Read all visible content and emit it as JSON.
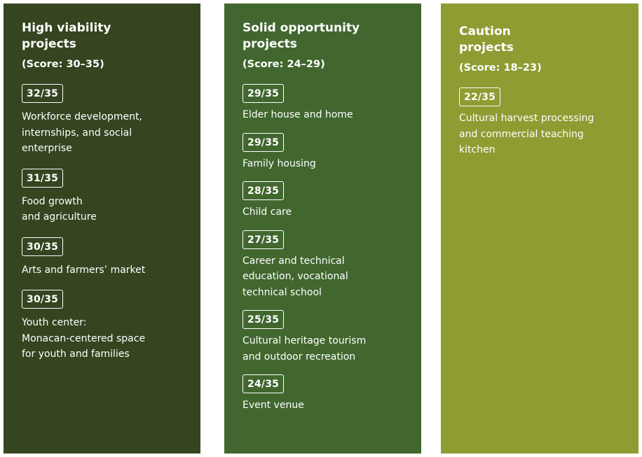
{
  "columns": [
    {
      "title": "High viability\nprojects",
      "score": "(Score: 30–35)",
      "items": [
        {
          "score": "32/35",
          "label": "Workforce development,\ninternships, and social\nenterprise"
        },
        {
          "score": "31/35",
          "label": "Food growth\nand agriculture"
        },
        {
          "score": "30/35",
          "label": "Arts and farmers’ market"
        },
        {
          "score": "30/35",
          "label": "Youth center:\nMonacan-centered space\nfor youth and families"
        }
      ]
    },
    {
      "title": "Solid opportunity\nprojects",
      "score": "(Score: 24–29)",
      "items": [
        {
          "score": "29/35",
          "label": "Elder house and home"
        },
        {
          "score": "29/35",
          "label": "Family housing"
        },
        {
          "score": "28/35",
          "label": "Child care"
        },
        {
          "score": "27/35",
          "label": "Career and technical\neducation, vocational\ntechnical school"
        },
        {
          "score": "25/35",
          "label": "Cultural heritage tourism\nand outdoor recreation"
        },
        {
          "score": "24/35",
          "label": "Event venue"
        }
      ]
    },
    {
      "title": "Caution\nprojects",
      "score": "(Score: 18–23)",
      "items": [
        {
          "score": "22/35",
          "label": "Cultural harvest processing\nand commercial teaching\nkitchen"
        }
      ]
    }
  ],
  "colors": {
    "high_viability": "#344520",
    "solid_opportunity": "#41672f",
    "caution": "#8e9c32"
  }
}
